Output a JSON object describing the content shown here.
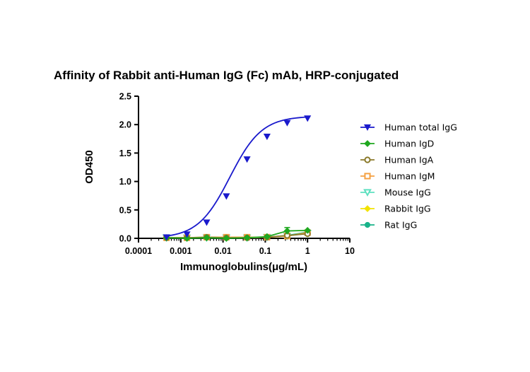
{
  "chart_data": {
    "type": "line",
    "title": "Affinity of Rabbit anti-Human IgG (Fc) mAb, HRP-conjugated",
    "xlabel": "Immunoglobulins(μg/mL)",
    "ylabel": "OD450",
    "xscale": "log",
    "xlim": [
      0.0001,
      10
    ],
    "ylim": [
      0,
      2.5
    ],
    "x_ticks": [
      "0.0001",
      "0.001",
      "0.01",
      "0.1",
      "1",
      "10"
    ],
    "y_ticks": [
      "0.0",
      "0.5",
      "1.0",
      "1.5",
      "2.0",
      "2.5"
    ],
    "legend_position": "right",
    "grid": false,
    "x": [
      0.00046,
      0.0014,
      0.0041,
      0.012,
      0.037,
      0.11,
      0.33,
      1.0
    ],
    "series": [
      {
        "name": "Human total IgG",
        "color": "#1a1acc",
        "marker": "triangle-down-filled",
        "values": [
          0.02,
          0.07,
          0.28,
          0.74,
          1.39,
          1.79,
          2.03,
          2.11
        ],
        "fit": "sigmoid"
      },
      {
        "name": "Human IgD",
        "color": "#1fa81f",
        "marker": "diamond-filled",
        "values": [
          0.01,
          0.0,
          0.01,
          0.0,
          0.01,
          0.03,
          0.13,
          0.14
        ]
      },
      {
        "name": "Human IgA",
        "color": "#8b7a2b",
        "marker": "circle-open",
        "values": [
          0.01,
          0.01,
          0.02,
          0.01,
          0.01,
          0.02,
          0.05,
          0.08
        ]
      },
      {
        "name": "Human IgM",
        "color": "#f5a142",
        "marker": "square-open",
        "values": [
          0.01,
          0.01,
          0.02,
          0.02,
          0.02,
          0.02,
          0.04,
          0.1
        ]
      },
      {
        "name": "Mouse IgG",
        "color": "#5ee0c0",
        "marker": "triangle-down-open",
        "values": [
          0.01,
          0.01,
          0.01,
          0.01,
          0.01,
          0.02,
          0.04,
          0.09
        ]
      },
      {
        "name": "Rabbit IgG",
        "color": "#f2e200",
        "marker": "diamond-filled",
        "values": [
          0.01,
          0.01,
          0.01,
          0.01,
          0.01,
          0.02,
          0.04,
          0.1
        ]
      },
      {
        "name": "Rat IgG",
        "color": "#19b38a",
        "marker": "circle-filled",
        "values": [
          0.01,
          0.01,
          0.01,
          0.01,
          0.01,
          0.02,
          0.05,
          0.11
        ]
      }
    ]
  }
}
